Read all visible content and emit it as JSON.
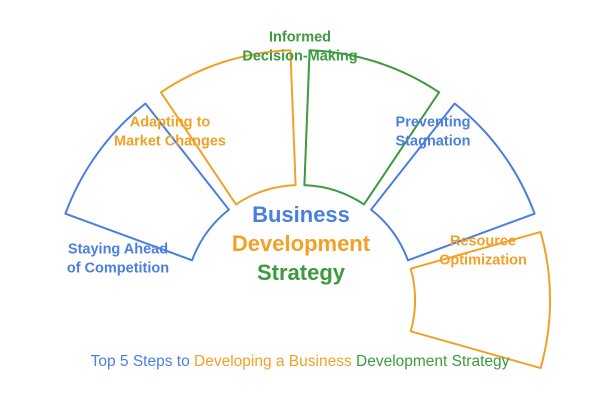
{
  "colors": {
    "blue": "#4a7fe0",
    "orange": "#f2a127",
    "green": "#3d9a3f"
  },
  "segments": [
    {
      "label_lines": [
        "Staying Ahead",
        "of Competition"
      ],
      "color": "blue"
    },
    {
      "label_lines": [
        "Adapting to",
        "Market Changes"
      ],
      "color": "orange"
    },
    {
      "label_lines": [
        "Informed",
        "Decision-Making"
      ],
      "color": "green"
    },
    {
      "label_lines": [
        "Preventing",
        "Stagnation"
      ],
      "color": "blue"
    },
    {
      "label_lines": [
        "Resource",
        "Optimization"
      ],
      "color": "orange"
    }
  ],
  "center": {
    "lines": [
      {
        "text": "Business",
        "color": "blue"
      },
      {
        "text": "Development",
        "color": "orange"
      },
      {
        "text": "Strategy",
        "color": "green"
      }
    ]
  },
  "caption": {
    "part1": "Top 5 Steps to ",
    "part2": "Developing a Business ",
    "part3": "Development Strategy"
  }
}
